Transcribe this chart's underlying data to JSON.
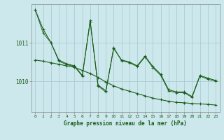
{
  "title": "Graphe pression niveau de la mer (hPa)",
  "background_color": "#cce8ec",
  "grid_color": "#aaccd4",
  "line_color": "#1a5c1a",
  "x_ticks": [
    0,
    1,
    2,
    3,
    4,
    5,
    6,
    7,
    8,
    9,
    10,
    11,
    12,
    13,
    14,
    15,
    16,
    17,
    18,
    19,
    20,
    21,
    22,
    23
  ],
  "y_ticks": [
    1010,
    1011
  ],
  "ylim": [
    1009.2,
    1012.0
  ],
  "xlim": [
    -0.5,
    23.5
  ],
  "series1": [
    1011.85,
    1011.35,
    1011.0,
    1010.55,
    1010.45,
    1010.4,
    1010.15,
    1011.55,
    1009.9,
    1009.75,
    1010.85,
    1010.55,
    1010.5,
    1010.4,
    1010.65,
    1010.38,
    1010.18,
    1009.78,
    1009.72,
    1009.72,
    1009.6,
    1010.15,
    1010.08,
    1010.02
  ],
  "series2": [
    1010.55,
    1010.52,
    1010.48,
    1010.44,
    1010.4,
    1010.36,
    1010.28,
    1010.2,
    1010.1,
    1009.98,
    1009.88,
    1009.8,
    1009.74,
    1009.68,
    1009.62,
    1009.56,
    1009.52,
    1009.48,
    1009.45,
    1009.44,
    1009.42,
    1009.41,
    1009.4,
    1009.38
  ],
  "series3": [
    1011.85,
    1011.25,
    1011.0,
    1010.52,
    1010.43,
    1010.38,
    1010.13,
    1011.58,
    1009.87,
    1009.72,
    1010.88,
    1010.53,
    1010.48,
    1010.38,
    1010.63,
    1010.35,
    1010.15,
    1009.75,
    1009.7,
    1009.7,
    1009.58,
    1010.13,
    1010.05,
    1010.0
  ]
}
